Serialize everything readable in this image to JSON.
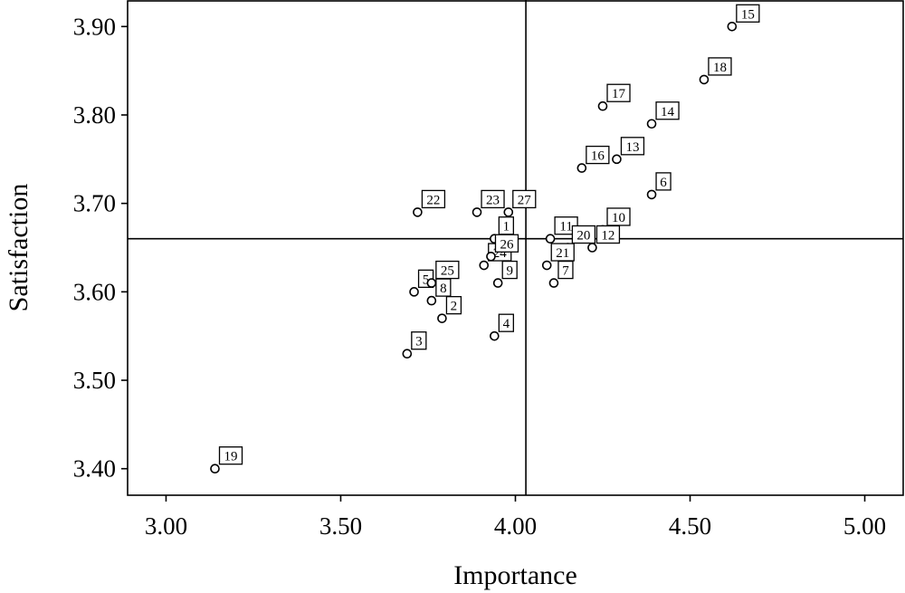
{
  "chart_data": {
    "type": "scatter",
    "title": "",
    "xlabel": "Importance",
    "ylabel": "Satisfaction",
    "xlim": [
      2.89,
      5.11
    ],
    "ylim": [
      3.37,
      3.93
    ],
    "x_ticks": [
      "3.00",
      "3.50",
      "4.00",
      "4.50",
      "5.00"
    ],
    "x_tick_values": [
      3.0,
      3.5,
      4.0,
      4.5,
      5.0
    ],
    "y_ticks": [
      "3.40",
      "3.50",
      "3.60",
      "3.70",
      "3.80",
      "3.90"
    ],
    "y_tick_values": [
      3.4,
      3.5,
      3.6,
      3.7,
      3.8,
      3.9
    ],
    "reference_lines": {
      "x": 4.03,
      "y": 3.66
    },
    "grid": false,
    "legend": "none",
    "points": [
      {
        "label": "1",
        "x": 3.94,
        "y": 3.66
      },
      {
        "label": "2",
        "x": 3.79,
        "y": 3.57
      },
      {
        "label": "3",
        "x": 3.69,
        "y": 3.53
      },
      {
        "label": "4",
        "x": 3.94,
        "y": 3.55
      },
      {
        "label": "5",
        "x": 3.71,
        "y": 3.6
      },
      {
        "label": "6",
        "x": 4.39,
        "y": 3.71
      },
      {
        "label": "7",
        "x": 4.11,
        "y": 3.61
      },
      {
        "label": "8",
        "x": 3.76,
        "y": 3.59
      },
      {
        "label": "9",
        "x": 3.95,
        "y": 3.61
      },
      {
        "label": "10",
        "x": 4.25,
        "y": 3.67
      },
      {
        "label": "11",
        "x": 4.1,
        "y": 3.66
      },
      {
        "label": "12",
        "x": 4.22,
        "y": 3.65
      },
      {
        "label": "13",
        "x": 4.29,
        "y": 3.75
      },
      {
        "label": "14",
        "x": 4.39,
        "y": 3.79
      },
      {
        "label": "15",
        "x": 4.62,
        "y": 3.9
      },
      {
        "label": "16",
        "x": 4.19,
        "y": 3.74
      },
      {
        "label": "17",
        "x": 4.25,
        "y": 3.81
      },
      {
        "label": "18",
        "x": 4.54,
        "y": 3.84
      },
      {
        "label": "19",
        "x": 3.14,
        "y": 3.4
      },
      {
        "label": "20",
        "x": 4.15,
        "y": 3.65
      },
      {
        "label": "21",
        "x": 4.09,
        "y": 3.63
      },
      {
        "label": "22",
        "x": 3.72,
        "y": 3.69
      },
      {
        "label": "23",
        "x": 3.89,
        "y": 3.69
      },
      {
        "label": "24",
        "x": 3.91,
        "y": 3.63
      },
      {
        "label": "25",
        "x": 3.76,
        "y": 3.61
      },
      {
        "label": "26",
        "x": 3.93,
        "y": 3.64
      },
      {
        "label": "27",
        "x": 3.98,
        "y": 3.69
      }
    ]
  }
}
